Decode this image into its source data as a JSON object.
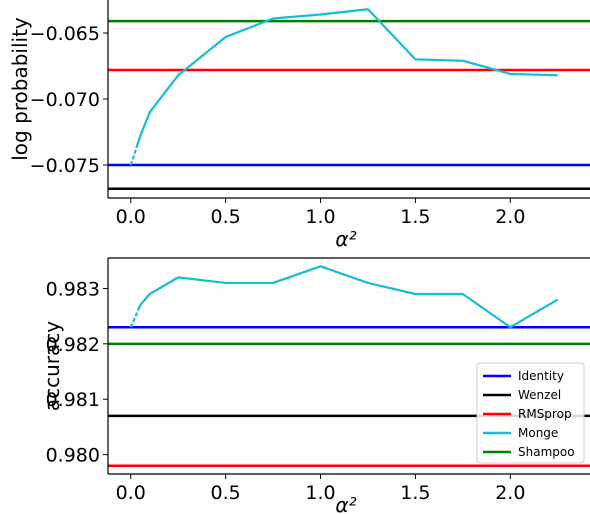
{
  "colors": {
    "identity": "#0000ff",
    "wenzel": "#000000",
    "rmsprop": "#ff0000",
    "monge": "#17becf",
    "shampoo": "#008000"
  },
  "chart_data": [
    {
      "type": "line",
      "xlabel": "α²",
      "ylabel": "log probability",
      "xlim": [
        -0.12,
        2.42
      ],
      "ylim": [
        -0.0775,
        -0.0625
      ],
      "xticks": [
        0.0,
        0.5,
        1.0,
        1.5,
        2.0
      ],
      "xtick_labels": [
        "0.0",
        "0.5",
        "1.0",
        "1.5",
        "2.0"
      ],
      "yticks": [
        -0.065,
        -0.07,
        -0.075
      ],
      "ytick_labels": [
        "−0.065",
        "−0.070",
        "−0.075"
      ],
      "grid": false,
      "legend": false,
      "series": [
        {
          "name": "Identity",
          "color": "identity",
          "kind": "hline",
          "y": -0.075
        },
        {
          "name": "Wenzel",
          "color": "wenzel",
          "kind": "hline",
          "y": -0.0768
        },
        {
          "name": "RMSprop",
          "color": "rmsprop",
          "kind": "hline",
          "y": -0.0678
        },
        {
          "name": "Shampoo",
          "color": "shampoo",
          "kind": "hline",
          "y": -0.0641
        },
        {
          "name": "Monge",
          "color": "monge",
          "kind": "line",
          "x": [
            0.0,
            0.05,
            0.1,
            0.25,
            0.5,
            0.75,
            1.0,
            1.25,
            1.5,
            1.75,
            2.0,
            2.25
          ],
          "y": [
            -0.075,
            -0.0728,
            -0.071,
            -0.0682,
            -0.0653,
            -0.0639,
            -0.0636,
            -0.0632,
            -0.067,
            -0.0671,
            -0.0681,
            -0.0682
          ]
        }
      ]
    },
    {
      "type": "line",
      "xlabel": "α²",
      "ylabel": "accuracy",
      "xlim": [
        -0.12,
        2.42
      ],
      "ylim": [
        0.97965,
        0.98355
      ],
      "xticks": [
        0.0,
        0.5,
        1.0,
        1.5,
        2.0
      ],
      "xtick_labels": [
        "0.0",
        "0.5",
        "1.0",
        "1.5",
        "2.0"
      ],
      "yticks": [
        0.983,
        0.982,
        0.981,
        0.98
      ],
      "ytick_labels": [
        "0.983",
        "0.982",
        "0.981",
        "0.980"
      ],
      "grid": false,
      "legend": "lower-right",
      "series": [
        {
          "name": "Identity",
          "color": "identity",
          "kind": "hline",
          "y": 0.9823
        },
        {
          "name": "Wenzel",
          "color": "wenzel",
          "kind": "hline",
          "y": 0.9807
        },
        {
          "name": "RMSprop",
          "color": "rmsprop",
          "kind": "hline",
          "y": 0.9798
        },
        {
          "name": "Monge",
          "color": "monge",
          "kind": "line",
          "x": [
            0.0,
            0.05,
            0.1,
            0.25,
            0.5,
            0.75,
            1.0,
            1.25,
            1.5,
            1.75,
            2.0,
            2.25
          ],
          "y": [
            0.9823,
            0.9827,
            0.9829,
            0.9832,
            0.9831,
            0.9831,
            0.9834,
            0.9831,
            0.9829,
            0.9829,
            0.9823,
            0.9828
          ]
        },
        {
          "name": "Shampoo",
          "color": "shampoo",
          "kind": "hline",
          "y": 0.982
        }
      ]
    }
  ]
}
